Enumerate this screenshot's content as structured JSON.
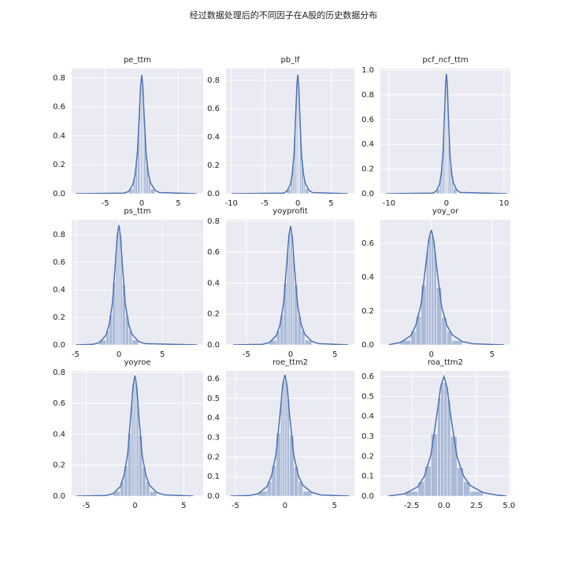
{
  "suptitle": "经过数据处理后的不同因子在A股的历史数据分布",
  "chart_data": [
    {
      "type": "histogram",
      "title": "pe_ttm",
      "color": "#4c72b0",
      "grid": true,
      "bins": [
        -1.8,
        -1.2,
        -0.9,
        -0.6,
        -0.3,
        -0.15,
        0,
        0.15,
        0.3,
        0.6,
        0.9,
        1.2,
        1.8
      ],
      "values": [
        0.033,
        0.098,
        0.205,
        0.426,
        0.672,
        0.779,
        0.779,
        0.656,
        0.41,
        0.197,
        0.098,
        0.033
      ],
      "line": {
        "x": [
          -9,
          -2.4,
          -1.8,
          -1.2,
          -0.9,
          -0.6,
          -0.3,
          -0.15,
          0,
          0.15,
          0.3,
          0.6,
          0.9,
          1.2,
          1.8,
          2.4,
          7.5
        ],
        "values": [
          0,
          0.004,
          0.016,
          0.066,
          0.139,
          0.287,
          0.59,
          0.754,
          0.82,
          0.738,
          0.558,
          0.271,
          0.139,
          0.074,
          0.025,
          0.008,
          0
        ]
      },
      "xlim": [
        -9.6,
        8.4
      ],
      "ylim": [
        0,
        0.865
      ],
      "xticks": [
        -5,
        0,
        5
      ],
      "yticks": [
        {
          "value": 0,
          "label": "0.0"
        },
        {
          "value": 0.2,
          "label": "0.2"
        },
        {
          "value": 0.4,
          "label": "0.4"
        },
        {
          "value": 0.6,
          "label": "0.6"
        },
        {
          "value": 0.8,
          "label": "0.8"
        }
      ]
    },
    {
      "type": "histogram",
      "title": "pb_lf",
      "color": "#4c72b0",
      "grid": true,
      "bins": [
        -1.65,
        -1.1,
        -0.83,
        -0.55,
        -0.28,
        -0.14,
        0,
        0.14,
        0.28,
        0.55,
        0.83,
        1.1,
        1.65
      ],
      "values": [
        0.034,
        0.101,
        0.21,
        0.437,
        0.689,
        0.798,
        0.798,
        0.672,
        0.42,
        0.202,
        0.101,
        0.034
      ],
      "line": {
        "x": [
          -10,
          -2.2,
          -1.65,
          -1.1,
          -0.83,
          -0.55,
          -0.28,
          -0.14,
          0,
          0.14,
          0.28,
          0.55,
          0.83,
          1.1,
          1.65,
          2.2,
          7.5
        ],
        "values": [
          0,
          0.004,
          0.017,
          0.067,
          0.143,
          0.294,
          0.605,
          0.773,
          0.84,
          0.756,
          0.571,
          0.277,
          0.143,
          0.076,
          0.025,
          0.008,
          0
        ]
      },
      "xlim": [
        -10.8,
        8.5
      ],
      "ylim": [
        0,
        0.883
      ],
      "xticks": [
        -10,
        -5,
        0,
        5
      ],
      "yticks": [
        {
          "value": 0,
          "label": "0.0"
        },
        {
          "value": 0.2,
          "label": "0.2"
        },
        {
          "value": 0.4,
          "label": "0.4"
        },
        {
          "value": 0.6,
          "label": "0.6"
        },
        {
          "value": 0.8,
          "label": "0.8"
        }
      ]
    },
    {
      "type": "histogram",
      "title": "pcf_ncf_ttm",
      "color": "#4c72b0",
      "grid": true,
      "bins": [
        -1.8,
        -1.2,
        -0.9,
        -0.6,
        -0.3,
        -0.15,
        0,
        0.15,
        0.3,
        0.6,
        0.9,
        1.2,
        1.8
      ],
      "values": [
        0.039,
        0.116,
        0.243,
        0.504,
        0.795,
        0.922,
        0.922,
        0.776,
        0.485,
        0.233,
        0.116,
        0.039
      ],
      "line": {
        "x": [
          -10.5,
          -2.4,
          -1.8,
          -1.2,
          -0.9,
          -0.6,
          -0.3,
          -0.15,
          0,
          0.15,
          0.3,
          0.6,
          0.9,
          1.2,
          1.8,
          2.4,
          10.5
        ],
        "values": [
          0,
          0.005,
          0.019,
          0.078,
          0.165,
          0.34,
          0.698,
          0.892,
          0.97,
          0.873,
          0.66,
          0.32,
          0.165,
          0.087,
          0.029,
          0.01,
          0
        ]
      },
      "xlim": [
        -11.5,
        11.1
      ],
      "ylim": [
        0,
        1.013
      ],
      "xticks": [
        -10,
        0,
        10
      ],
      "yticks": [
        {
          "value": 0,
          "label": "0.0"
        },
        {
          "value": 0.2,
          "label": "0.2"
        },
        {
          "value": 0.4,
          "label": "0.4"
        },
        {
          "value": 0.6,
          "label": "0.6"
        },
        {
          "value": 0.8,
          "label": "0.8"
        },
        {
          "value": 1,
          "label": "1.0"
        }
      ]
    },
    {
      "type": "histogram",
      "title": "ps_ttm",
      "color": "#4c72b0",
      "grid": true,
      "bins": [
        -2.25,
        -1.5,
        -1.13,
        -0.75,
        -0.38,
        -0.19,
        0,
        0.19,
        0.38,
        0.75,
        1.13,
        1.5,
        2.25
      ],
      "values": [
        0.035,
        0.104,
        0.218,
        0.452,
        0.713,
        0.827,
        0.827,
        0.696,
        0.435,
        0.209,
        0.104,
        0.035
      ],
      "line": {
        "x": [
          -5,
          -3,
          -2.25,
          -1.5,
          -1.13,
          -0.75,
          -0.38,
          -0.19,
          0,
          0.19,
          0.38,
          0.75,
          1.13,
          1.5,
          2.25,
          3,
          9
        ],
        "values": [
          0,
          0.004,
          0.017,
          0.07,
          0.148,
          0.305,
          0.626,
          0.8,
          0.87,
          0.783,
          0.592,
          0.287,
          0.148,
          0.078,
          0.026,
          0.009,
          0
        ]
      },
      "xlim": [
        -5.45,
        9.7
      ],
      "ylim": [
        0,
        0.909
      ],
      "xticks": [
        -5,
        0,
        5
      ],
      "yticks": [
        {
          "value": 0,
          "label": "0.0"
        },
        {
          "value": 0.2,
          "label": "0.2"
        },
        {
          "value": 0.4,
          "label": "0.4"
        },
        {
          "value": 0.6,
          "label": "0.6"
        },
        {
          "value": 0.8,
          "label": "0.8"
        }
      ]
    },
    {
      "type": "histogram",
      "title": "yoyprofit",
      "color": "#4c72b0",
      "grid": true,
      "bins": [
        -2.4,
        -1.6,
        -1.2,
        -0.8,
        -0.4,
        -0.2,
        0,
        0.2,
        0.4,
        0.8,
        1.2,
        1.6,
        2.4
      ],
      "values": [
        0.031,
        0.092,
        0.193,
        0.4,
        0.631,
        0.732,
        0.732,
        0.616,
        0.385,
        0.185,
        0.092,
        0.031
      ],
      "line": {
        "x": [
          -6.5,
          -3.2,
          -2.4,
          -1.6,
          -1.2,
          -0.8,
          -0.4,
          -0.2,
          0,
          0.2,
          0.4,
          0.8,
          1.2,
          1.6,
          2.4,
          3.2,
          6.5
        ],
        "values": [
          0,
          0.004,
          0.015,
          0.062,
          0.131,
          0.27,
          0.554,
          0.708,
          0.77,
          0.693,
          0.524,
          0.254,
          0.131,
          0.069,
          0.023,
          0.008,
          0
        ]
      },
      "xlim": [
        -7.3,
        7.2
      ],
      "ylim": [
        0,
        0.81
      ],
      "xticks": [
        -5,
        0,
        5
      ],
      "yticks": [
        {
          "value": 0,
          "label": "0.0"
        },
        {
          "value": 0.2,
          "label": "0.2"
        },
        {
          "value": 0.4,
          "label": "0.4"
        },
        {
          "value": 0.6,
          "label": "0.6"
        },
        {
          "value": 0.8,
          "label": "0.8"
        }
      ]
    },
    {
      "type": "histogram",
      "title": "yoy_or",
      "color": "#4c72b0",
      "grid": true,
      "bins": [
        -2.55,
        -1.7,
        -1.28,
        -0.85,
        -0.43,
        -0.21,
        0,
        0.21,
        0.43,
        0.85,
        1.28,
        1.7,
        2.55
      ],
      "values": [
        0.027,
        0.082,
        0.17,
        0.354,
        0.558,
        0.646,
        0.646,
        0.544,
        0.34,
        0.163,
        0.082,
        0.027
      ],
      "line": {
        "x": [
          -3.5,
          -3.4,
          -2.55,
          -1.7,
          -1.28,
          -0.85,
          -0.43,
          -0.21,
          0,
          0.21,
          0.43,
          0.85,
          1.28,
          1.7,
          2.55,
          3.4,
          6
        ],
        "values": [
          0,
          0.003,
          0.014,
          0.054,
          0.116,
          0.238,
          0.49,
          0.626,
          0.68,
          0.612,
          0.462,
          0.224,
          0.116,
          0.061,
          0.02,
          0.007,
          0
        ]
      },
      "xlim": [
        -4.2,
        6.5
      ],
      "ylim": [
        0,
        0.74
      ],
      "xticks": [
        0,
        5
      ],
      "yticks": [
        {
          "value": 0,
          "label": "0.0"
        },
        {
          "value": 0.2,
          "label": "0.2"
        },
        {
          "value": 0.4,
          "label": "0.4"
        },
        {
          "value": 0.6,
          "label": "0.6"
        }
      ]
    },
    {
      "type": "histogram",
      "title": "yoyroe",
      "color": "#4c72b0",
      "grid": true,
      "bins": [
        -2.25,
        -1.5,
        -1.13,
        -0.75,
        -0.38,
        -0.19,
        0,
        0.19,
        0.38,
        0.75,
        1.13,
        1.5,
        2.25
      ],
      "values": [
        0.031,
        0.094,
        0.195,
        0.406,
        0.64,
        0.741,
        0.741,
        0.624,
        0.39,
        0.187,
        0.094,
        0.031
      ],
      "line": {
        "x": [
          -6,
          -3,
          -2.25,
          -1.5,
          -1.13,
          -0.75,
          -0.38,
          -0.19,
          0,
          0.19,
          0.38,
          0.75,
          1.13,
          1.5,
          2.25,
          3,
          6
        ],
        "values": [
          0,
          0.004,
          0.016,
          0.062,
          0.133,
          0.273,
          0.562,
          0.718,
          0.78,
          0.702,
          0.53,
          0.257,
          0.133,
          0.07,
          0.023,
          0.008,
          0
        ]
      },
      "xlim": [
        -6.5,
        7.0
      ],
      "ylim": [
        0,
        0.81
      ],
      "xticks": [
        -5,
        0,
        5
      ],
      "yticks": [
        {
          "value": 0,
          "label": "0.0"
        },
        {
          "value": 0.2,
          "label": "0.2"
        },
        {
          "value": 0.4,
          "label": "0.4"
        },
        {
          "value": 0.6,
          "label": "0.6"
        },
        {
          "value": 0.8,
          "label": "0.8"
        }
      ]
    },
    {
      "type": "histogram",
      "title": "roe_ttm2",
      "color": "#4c72b0",
      "grid": true,
      "bins": [
        -2.7,
        -1.8,
        -1.35,
        -0.9,
        -0.45,
        -0.23,
        0,
        0.23,
        0.45,
        0.9,
        1.35,
        1.8,
        2.7
      ],
      "values": [
        0.025,
        0.074,
        0.155,
        0.322,
        0.508,
        0.589,
        0.589,
        0.496,
        0.31,
        0.149,
        0.074,
        0.025
      ],
      "line": {
        "x": [
          -5.5,
          -3.6,
          -2.7,
          -1.8,
          -1.35,
          -0.9,
          -0.45,
          -0.23,
          0,
          0.23,
          0.45,
          0.9,
          1.35,
          1.8,
          2.7,
          3.6,
          6.5
        ],
        "values": [
          0,
          0.003,
          0.012,
          0.05,
          0.105,
          0.217,
          0.446,
          0.57,
          0.62,
          0.558,
          0.422,
          0.205,
          0.105,
          0.056,
          0.019,
          0.006,
          0
        ]
      },
      "xlim": [
        -5.95,
        7.0
      ],
      "ylim": [
        0,
        0.64
      ],
      "xticks": [
        -5,
        0,
        5
      ],
      "yticks": [
        {
          "value": 0,
          "label": "0.0"
        },
        {
          "value": 0.1,
          "label": "0.1"
        },
        {
          "value": 0.2,
          "label": "0.2"
        },
        {
          "value": 0.3,
          "label": "0.3"
        },
        {
          "value": 0.4,
          "label": "0.4"
        },
        {
          "value": 0.5,
          "label": "0.5"
        },
        {
          "value": 0.6,
          "label": "0.6"
        }
      ]
    },
    {
      "type": "histogram",
      "title": "roa_ttm2",
      "color": "#4c72b0",
      "grid": true,
      "bins": [
        -3,
        -2,
        -1.5,
        -1,
        -0.5,
        -0.25,
        0,
        0.25,
        0.5,
        1,
        1.5,
        2,
        3
      ],
      "values": [
        0.024,
        0.072,
        0.15,
        0.312,
        0.492,
        0.57,
        0.57,
        0.48,
        0.3,
        0.144,
        0.072,
        0.024
      ],
      "line": {
        "x": [
          -4.3,
          -4,
          -3,
          -2,
          -1.5,
          -1,
          -0.5,
          -0.25,
          0,
          0.25,
          0.5,
          1,
          1.5,
          2,
          3,
          4,
          4.8
        ],
        "values": [
          0,
          0.003,
          0.012,
          0.048,
          0.102,
          0.21,
          0.432,
          0.552,
          0.6,
          0.54,
          0.408,
          0.198,
          0.102,
          0.054,
          0.018,
          0.006,
          0
        ]
      },
      "xlim": [
        -4.9,
        5.1
      ],
      "ylim": [
        0,
        0.628
      ],
      "xticks": [
        -2.5,
        {
          "value": 0,
          "label": "0.0"
        },
        2.5,
        {
          "value": 5,
          "label": "5.0"
        }
      ],
      "yticks": [
        {
          "value": 0,
          "label": "0.0"
        },
        {
          "value": 0.1,
          "label": "0.1"
        },
        {
          "value": 0.2,
          "label": "0.2"
        },
        {
          "value": 0.3,
          "label": "0.3"
        },
        {
          "value": 0.4,
          "label": "0.4"
        },
        {
          "value": 0.5,
          "label": "0.5"
        },
        {
          "value": 0.6,
          "label": "0.6"
        }
      ]
    }
  ]
}
